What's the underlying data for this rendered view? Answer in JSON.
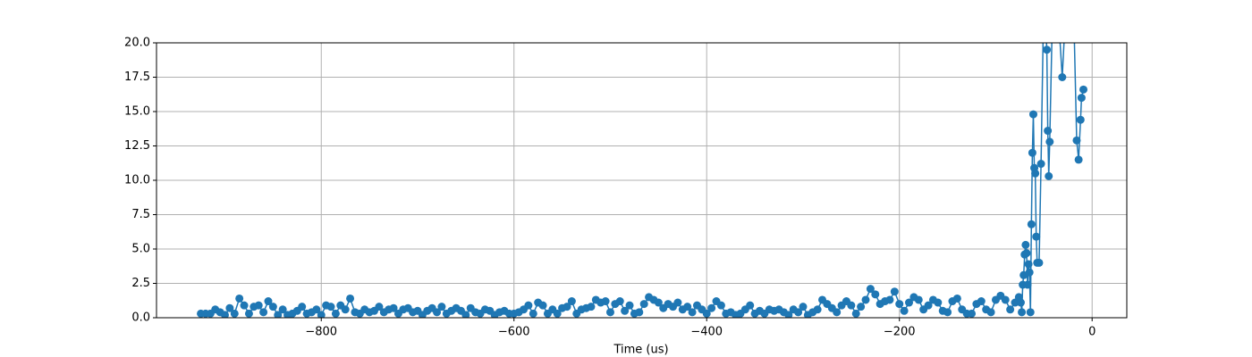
{
  "chart_data": {
    "type": "line",
    "xlabel": "Time (us)",
    "color": "#1f77b4",
    "marker": "o",
    "grid": true,
    "xlim": [
      -971,
      36
    ],
    "ylim": [
      0,
      20
    ],
    "xticks": [
      {
        "value": -800,
        "label": "−800"
      },
      {
        "value": -600,
        "label": "−600"
      },
      {
        "value": -400,
        "label": "−400"
      },
      {
        "value": -200,
        "label": "−200"
      },
      0
    ],
    "yticks": [
      {
        "value": 0,
        "label": "0.0"
      },
      2.5,
      {
        "value": 5,
        "label": "5.0"
      },
      7.5,
      {
        "value": 10,
        "label": "10.0"
      },
      12.5,
      {
        "value": 15,
        "label": "15.0"
      },
      17.5,
      {
        "value": 20,
        "label": "20.0"
      }
    ],
    "x": [
      -925,
      -920,
      -915,
      -910,
      -905,
      -900,
      -895,
      -890,
      -885,
      -880,
      -875,
      -870,
      -865,
      -860,
      -855,
      -850,
      -845,
      -840,
      -835,
      -830,
      -825,
      -820,
      -815,
      -810,
      -805,
      -800,
      -795,
      -790,
      -785,
      -780,
      -775,
      -770,
      -765,
      -760,
      -755,
      -750,
      -745,
      -740,
      -735,
      -730,
      -725,
      -720,
      -715,
      -710,
      -705,
      -700,
      -695,
      -690,
      -685,
      -680,
      -675,
      -670,
      -665,
      -660,
      -655,
      -650,
      -645,
      -640,
      -635,
      -630,
      -625,
      -620,
      -615,
      -610,
      -605,
      -600,
      -595,
      -590,
      -585,
      -580,
      -575,
      -570,
      -565,
      -560,
      -555,
      -550,
      -545,
      -540,
      -535,
      -530,
      -525,
      -520,
      -515,
      -510,
      -505,
      -500,
      -495,
      -490,
      -485,
      -480,
      -475,
      -470,
      -465,
      -460,
      -455,
      -450,
      -445,
      -440,
      -435,
      -430,
      -425,
      -420,
      -415,
      -410,
      -405,
      -400,
      -395,
      -390,
      -385,
      -380,
      -375,
      -370,
      -365,
      -360,
      -355,
      -350,
      -345,
      -340,
      -335,
      -330,
      -325,
      -320,
      -315,
      -310,
      -305,
      -300,
      -295,
      -290,
      -285,
      -280,
      -275,
      -270,
      -265,
      -260,
      -255,
      -250,
      -245,
      -240,
      -235,
      -230,
      -225,
      -220,
      -215,
      -210,
      -205,
      -200,
      -195,
      -190,
      -185,
      -180,
      -175,
      -170,
      -165,
      -160,
      -155,
      -150,
      -145,
      -140,
      -135,
      -130,
      -125,
      -120,
      -115,
      -110,
      -105,
      -100,
      -95,
      -90,
      -85,
      -80,
      -76,
      -74,
      -73,
      -72,
      -71,
      -70,
      -69,
      -68,
      -67,
      -66,
      -65,
      -64,
      -63,
      -62,
      -61,
      -60,
      -59,
      -58,
      -57,
      -55,
      -53,
      -50,
      -47,
      -46,
      -45,
      -44,
      -40,
      -35,
      -31,
      -27,
      -20,
      -16,
      -14,
      -12,
      -11,
      -9
    ],
    "values": [
      0.3,
      0.3,
      0.3,
      0.6,
      0.4,
      0.2,
      0.7,
      0.3,
      1.4,
      0.9,
      0.3,
      0.8,
      0.9,
      0.4,
      1.2,
      0.8,
      0.2,
      0.6,
      0.2,
      0.3,
      0.5,
      0.8,
      0.3,
      0.4,
      0.6,
      0.2,
      0.9,
      0.8,
      0.3,
      0.9,
      0.6,
      1.4,
      0.4,
      0.3,
      0.6,
      0.4,
      0.5,
      0.8,
      0.4,
      0.6,
      0.7,
      0.3,
      0.6,
      0.7,
      0.4,
      0.5,
      0.2,
      0.5,
      0.7,
      0.4,
      0.8,
      0.3,
      0.5,
      0.7,
      0.5,
      0.2,
      0.7,
      0.4,
      0.3,
      0.6,
      0.5,
      0.2,
      0.4,
      0.5,
      0.3,
      0.3,
      0.4,
      0.6,
      0.9,
      0.3,
      1.1,
      0.9,
      0.3,
      0.6,
      0.3,
      0.7,
      0.8,
      1.2,
      0.3,
      0.6,
      0.7,
      0.8,
      1.3,
      1.1,
      1.2,
      0.4,
      1.0,
      1.2,
      0.5,
      0.9,
      0.3,
      0.4,
      1.0,
      1.5,
      1.3,
      1.1,
      0.7,
      1.0,
      0.8,
      1.1,
      0.6,
      0.8,
      0.4,
      0.9,
      0.6,
      0.3,
      0.7,
      1.2,
      0.9,
      0.3,
      0.4,
      0.2,
      0.3,
      0.6,
      0.9,
      0.3,
      0.5,
      0.3,
      0.6,
      0.5,
      0.6,
      0.4,
      0.2,
      0.6,
      0.4,
      0.8,
      0.2,
      0.4,
      0.6,
      1.3,
      1.0,
      0.7,
      0.4,
      0.9,
      1.2,
      0.9,
      0.3,
      0.8,
      1.3,
      2.1,
      1.7,
      1.0,
      1.2,
      1.3,
      1.9,
      1.0,
      0.5,
      1.1,
      1.5,
      1.3,
      0.6,
      0.9,
      1.3,
      1.1,
      0.5,
      0.4,
      1.2,
      1.4,
      0.6,
      0.3,
      0.3,
      1.0,
      1.2,
      0.6,
      0.4,
      1.3,
      1.6,
      1.3,
      0.6,
      1.1,
      1.5,
      1.1,
      0.4,
      2.4,
      3.1,
      4.6,
      5.3,
      4.7,
      2.4,
      3.9,
      3.3,
      0.4,
      6.8,
      12.0,
      14.8,
      10.9,
      10.5,
      5.9,
      4.0,
      4.0,
      11.2,
      24,
      19.5,
      13.6,
      10.3,
      12.8,
      26,
      22,
      17.5,
      23,
      25,
      12.9,
      11.5,
      14.4,
      16.0,
      16.6
    ]
  }
}
